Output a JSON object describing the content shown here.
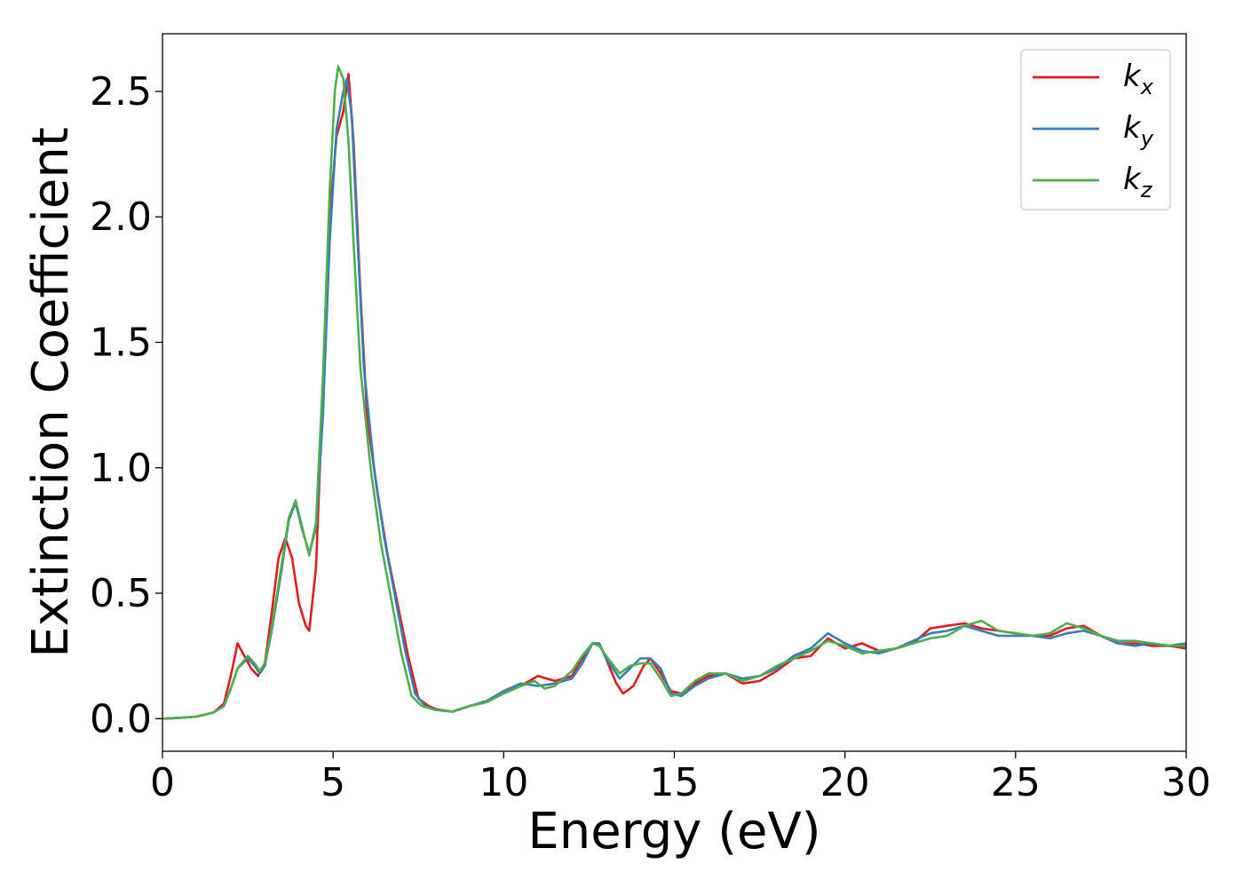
{
  "chart_data": {
    "type": "line",
    "title": "",
    "xlabel": "Energy (eV)",
    "ylabel": "Extinction Coefficient",
    "xlim": [
      0,
      30
    ],
    "ylim": [
      -0.13,
      2.73
    ],
    "xticks": [
      0,
      5,
      10,
      15,
      20,
      25,
      30
    ],
    "xtick_labels": [
      "0",
      "5",
      "10",
      "15",
      "20",
      "25",
      "30"
    ],
    "yticks": [
      0.0,
      0.5,
      1.0,
      1.5,
      2.0,
      2.5
    ],
    "ytick_labels": [
      "0.0",
      "0.5",
      "1.0",
      "1.5",
      "2.0",
      "2.5"
    ],
    "grid": false,
    "legend_position": "top-right",
    "series": [
      {
        "name": "k_x",
        "legend_base": "k",
        "legend_sub": "x",
        "color": "#e41a1c",
        "points": [
          [
            0,
            0
          ],
          [
            0.5,
            0.003
          ],
          [
            1.0,
            0.008
          ],
          [
            1.5,
            0.025
          ],
          [
            1.8,
            0.06
          ],
          [
            2.0,
            0.17
          ],
          [
            2.2,
            0.3
          ],
          [
            2.4,
            0.25
          ],
          [
            2.6,
            0.2
          ],
          [
            2.8,
            0.17
          ],
          [
            3.0,
            0.22
          ],
          [
            3.2,
            0.42
          ],
          [
            3.4,
            0.64
          ],
          [
            3.6,
            0.72
          ],
          [
            3.8,
            0.64
          ],
          [
            4.0,
            0.46
          ],
          [
            4.2,
            0.37
          ],
          [
            4.3,
            0.35
          ],
          [
            4.5,
            0.6
          ],
          [
            4.7,
            1.3
          ],
          [
            4.9,
            2.0
          ],
          [
            5.1,
            2.32
          ],
          [
            5.3,
            2.42
          ],
          [
            5.45,
            2.57
          ],
          [
            5.6,
            2.3
          ],
          [
            5.8,
            1.7
          ],
          [
            6.0,
            1.2
          ],
          [
            6.3,
            0.9
          ],
          [
            6.6,
            0.65
          ],
          [
            6.9,
            0.45
          ],
          [
            7.2,
            0.25
          ],
          [
            7.5,
            0.08
          ],
          [
            7.8,
            0.05
          ],
          [
            8.0,
            0.038
          ],
          [
            8.5,
            0.028
          ],
          [
            9.0,
            0.05
          ],
          [
            9.5,
            0.07
          ],
          [
            10.0,
            0.11
          ],
          [
            10.5,
            0.13
          ],
          [
            11.0,
            0.17
          ],
          [
            11.5,
            0.15
          ],
          [
            12.0,
            0.17
          ],
          [
            12.3,
            0.24
          ],
          [
            12.6,
            0.3
          ],
          [
            12.8,
            0.3
          ],
          [
            13.0,
            0.24
          ],
          [
            13.3,
            0.14
          ],
          [
            13.5,
            0.1
          ],
          [
            13.8,
            0.13
          ],
          [
            14.1,
            0.21
          ],
          [
            14.3,
            0.24
          ],
          [
            14.6,
            0.18
          ],
          [
            14.9,
            0.11
          ],
          [
            15.2,
            0.1
          ],
          [
            15.6,
            0.14
          ],
          [
            16.0,
            0.17
          ],
          [
            16.5,
            0.18
          ],
          [
            17.0,
            0.14
          ],
          [
            17.5,
            0.15
          ],
          [
            18.0,
            0.19
          ],
          [
            18.5,
            0.24
          ],
          [
            19.0,
            0.25
          ],
          [
            19.5,
            0.32
          ],
          [
            20.0,
            0.28
          ],
          [
            20.5,
            0.3
          ],
          [
            21.0,
            0.27
          ],
          [
            21.5,
            0.28
          ],
          [
            22.0,
            0.3
          ],
          [
            22.5,
            0.36
          ],
          [
            23.0,
            0.37
          ],
          [
            23.5,
            0.38
          ],
          [
            24.0,
            0.36
          ],
          [
            24.5,
            0.35
          ],
          [
            25.0,
            0.34
          ],
          [
            25.5,
            0.33
          ],
          [
            26.0,
            0.33
          ],
          [
            26.5,
            0.36
          ],
          [
            27.0,
            0.37
          ],
          [
            27.5,
            0.33
          ],
          [
            28.0,
            0.3
          ],
          [
            28.5,
            0.3
          ],
          [
            29.0,
            0.29
          ],
          [
            29.5,
            0.29
          ],
          [
            30.0,
            0.28
          ]
        ]
      },
      {
        "name": "k_y",
        "legend_base": "k",
        "legend_sub": "y",
        "color": "#377eb8",
        "points": [
          [
            0,
            0
          ],
          [
            0.5,
            0.003
          ],
          [
            1.0,
            0.008
          ],
          [
            1.5,
            0.025
          ],
          [
            1.8,
            0.05
          ],
          [
            2.0,
            0.12
          ],
          [
            2.2,
            0.2
          ],
          [
            2.5,
            0.24
          ],
          [
            2.7,
            0.21
          ],
          [
            2.85,
            0.18
          ],
          [
            3.0,
            0.21
          ],
          [
            3.2,
            0.35
          ],
          [
            3.5,
            0.6
          ],
          [
            3.7,
            0.79
          ],
          [
            3.9,
            0.86
          ],
          [
            4.1,
            0.75
          ],
          [
            4.3,
            0.66
          ],
          [
            4.5,
            0.76
          ],
          [
            4.7,
            1.2
          ],
          [
            4.9,
            1.9
          ],
          [
            5.1,
            2.35
          ],
          [
            5.3,
            2.5
          ],
          [
            5.4,
            2.55
          ],
          [
            5.55,
            2.4
          ],
          [
            5.7,
            1.95
          ],
          [
            5.9,
            1.4
          ],
          [
            6.2,
            1.0
          ],
          [
            6.5,
            0.72
          ],
          [
            6.8,
            0.5
          ],
          [
            7.1,
            0.28
          ],
          [
            7.4,
            0.1
          ],
          [
            7.7,
            0.05
          ],
          [
            8.0,
            0.035
          ],
          [
            8.5,
            0.028
          ],
          [
            9.0,
            0.05
          ],
          [
            9.5,
            0.07
          ],
          [
            10.0,
            0.11
          ],
          [
            10.5,
            0.14
          ],
          [
            11.0,
            0.13
          ],
          [
            11.5,
            0.14
          ],
          [
            12.0,
            0.16
          ],
          [
            12.3,
            0.22
          ],
          [
            12.6,
            0.3
          ],
          [
            12.8,
            0.3
          ],
          [
            13.0,
            0.24
          ],
          [
            13.4,
            0.16
          ],
          [
            13.7,
            0.2
          ],
          [
            14.0,
            0.24
          ],
          [
            14.3,
            0.24
          ],
          [
            14.6,
            0.2
          ],
          [
            14.9,
            0.1
          ],
          [
            15.2,
            0.09
          ],
          [
            15.6,
            0.13
          ],
          [
            16.0,
            0.16
          ],
          [
            16.5,
            0.18
          ],
          [
            17.0,
            0.16
          ],
          [
            17.5,
            0.17
          ],
          [
            18.0,
            0.2
          ],
          [
            18.5,
            0.25
          ],
          [
            19.0,
            0.28
          ],
          [
            19.5,
            0.34
          ],
          [
            20.0,
            0.3
          ],
          [
            20.5,
            0.27
          ],
          [
            21.0,
            0.26
          ],
          [
            21.5,
            0.28
          ],
          [
            22.0,
            0.31
          ],
          [
            22.5,
            0.34
          ],
          [
            23.0,
            0.35
          ],
          [
            23.5,
            0.37
          ],
          [
            24.0,
            0.35
          ],
          [
            24.5,
            0.33
          ],
          [
            25.0,
            0.33
          ],
          [
            25.5,
            0.33
          ],
          [
            26.0,
            0.32
          ],
          [
            26.5,
            0.34
          ],
          [
            27.0,
            0.35
          ],
          [
            27.5,
            0.33
          ],
          [
            28.0,
            0.3
          ],
          [
            28.5,
            0.29
          ],
          [
            29.0,
            0.3
          ],
          [
            29.5,
            0.29
          ],
          [
            30.0,
            0.3
          ]
        ]
      },
      {
        "name": "k_z",
        "legend_base": "k",
        "legend_sub": "z",
        "color": "#4daf4a",
        "points": [
          [
            0,
            0
          ],
          [
            0.5,
            0.003
          ],
          [
            1.0,
            0.008
          ],
          [
            1.5,
            0.025
          ],
          [
            1.8,
            0.05
          ],
          [
            2.0,
            0.12
          ],
          [
            2.2,
            0.2
          ],
          [
            2.5,
            0.25
          ],
          [
            2.7,
            0.22
          ],
          [
            2.85,
            0.19
          ],
          [
            3.0,
            0.22
          ],
          [
            3.2,
            0.36
          ],
          [
            3.5,
            0.62
          ],
          [
            3.7,
            0.8
          ],
          [
            3.9,
            0.87
          ],
          [
            4.1,
            0.76
          ],
          [
            4.3,
            0.65
          ],
          [
            4.5,
            0.78
          ],
          [
            4.7,
            1.35
          ],
          [
            4.9,
            2.1
          ],
          [
            5.05,
            2.5
          ],
          [
            5.15,
            2.6
          ],
          [
            5.3,
            2.55
          ],
          [
            5.45,
            2.3
          ],
          [
            5.6,
            1.9
          ],
          [
            5.8,
            1.4
          ],
          [
            6.1,
            1.0
          ],
          [
            6.4,
            0.7
          ],
          [
            6.7,
            0.48
          ],
          [
            7.0,
            0.26
          ],
          [
            7.3,
            0.09
          ],
          [
            7.6,
            0.05
          ],
          [
            8.0,
            0.035
          ],
          [
            8.5,
            0.028
          ],
          [
            9.0,
            0.05
          ],
          [
            9.5,
            0.065
          ],
          [
            10.0,
            0.1
          ],
          [
            10.5,
            0.13
          ],
          [
            10.9,
            0.15
          ],
          [
            11.2,
            0.12
          ],
          [
            11.5,
            0.13
          ],
          [
            12.0,
            0.19
          ],
          [
            12.3,
            0.25
          ],
          [
            12.6,
            0.3
          ],
          [
            12.8,
            0.29
          ],
          [
            13.0,
            0.25
          ],
          [
            13.4,
            0.18
          ],
          [
            13.7,
            0.21
          ],
          [
            14.0,
            0.22
          ],
          [
            14.3,
            0.22
          ],
          [
            14.6,
            0.16
          ],
          [
            14.9,
            0.09
          ],
          [
            15.2,
            0.1
          ],
          [
            15.6,
            0.15
          ],
          [
            16.0,
            0.18
          ],
          [
            16.5,
            0.18
          ],
          [
            17.0,
            0.15
          ],
          [
            17.5,
            0.17
          ],
          [
            18.0,
            0.21
          ],
          [
            18.5,
            0.24
          ],
          [
            19.0,
            0.27
          ],
          [
            19.5,
            0.31
          ],
          [
            20.0,
            0.29
          ],
          [
            20.5,
            0.26
          ],
          [
            21.0,
            0.27
          ],
          [
            21.5,
            0.28
          ],
          [
            22.0,
            0.3
          ],
          [
            22.5,
            0.32
          ],
          [
            23.0,
            0.33
          ],
          [
            23.5,
            0.37
          ],
          [
            24.0,
            0.39
          ],
          [
            24.5,
            0.35
          ],
          [
            25.0,
            0.34
          ],
          [
            25.5,
            0.33
          ],
          [
            26.0,
            0.34
          ],
          [
            26.5,
            0.38
          ],
          [
            27.0,
            0.36
          ],
          [
            27.5,
            0.33
          ],
          [
            28.0,
            0.31
          ],
          [
            28.5,
            0.31
          ],
          [
            29.0,
            0.3
          ],
          [
            29.5,
            0.29
          ],
          [
            30.0,
            0.29
          ]
        ]
      }
    ]
  }
}
